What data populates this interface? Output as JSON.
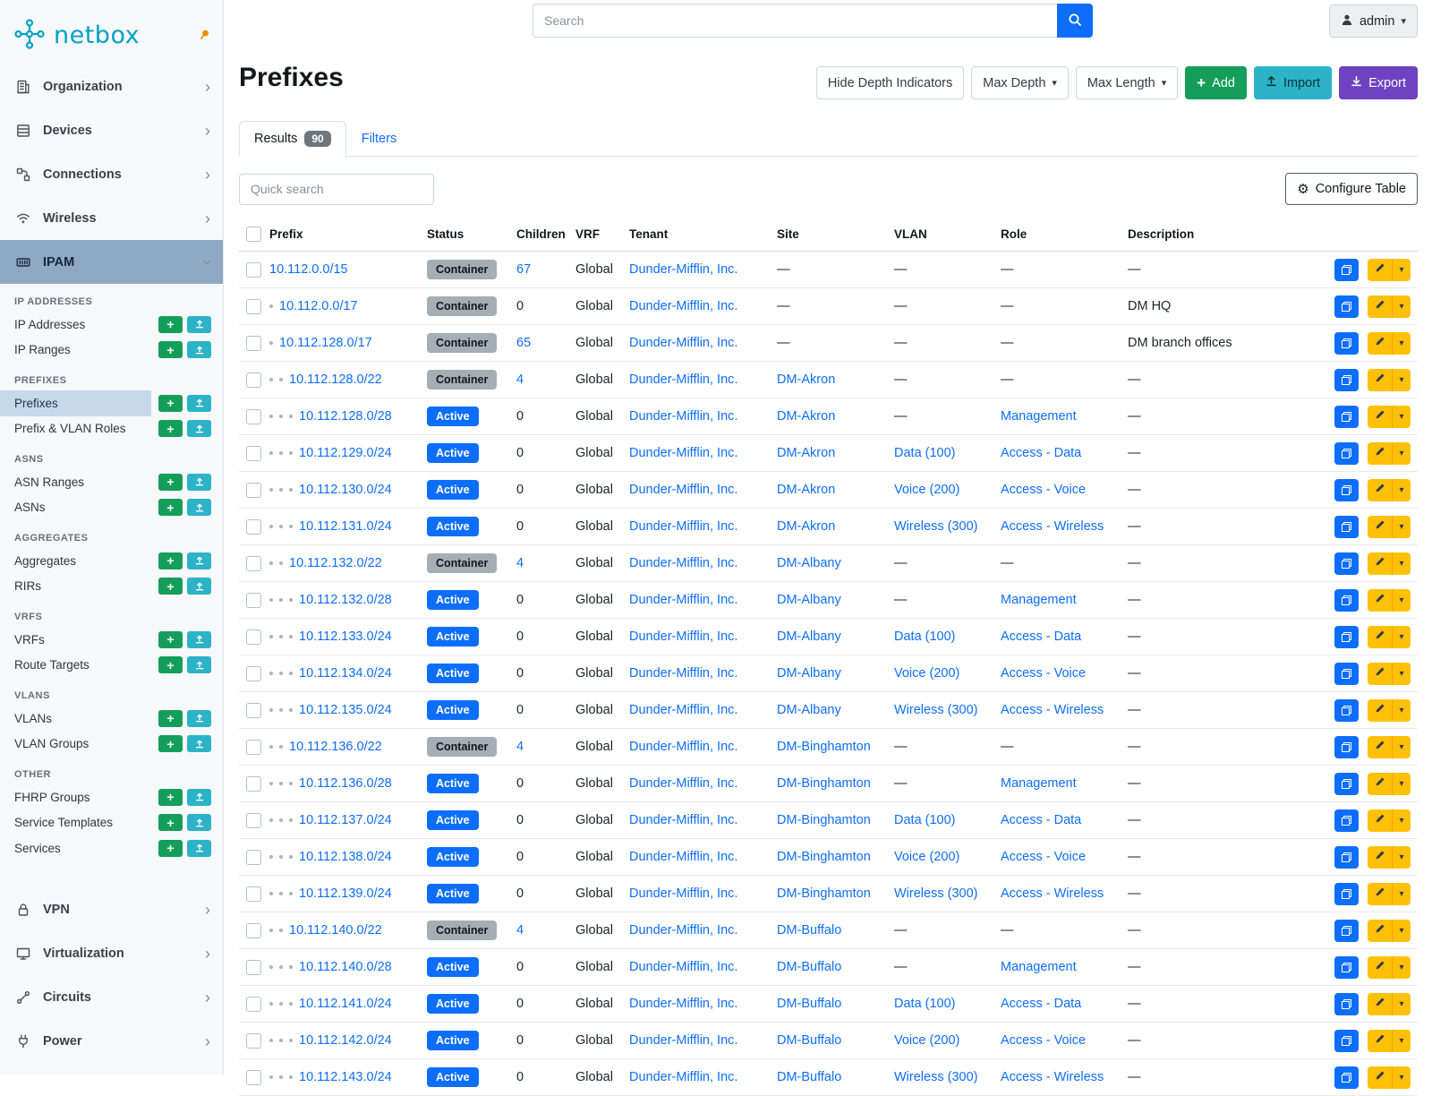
{
  "brand": {
    "name": "netbox"
  },
  "topbar": {
    "search_placeholder": "Search",
    "user": "admin"
  },
  "sidebar": {
    "top_items": [
      {
        "label": "Organization"
      },
      {
        "label": "Devices"
      },
      {
        "label": "Connections"
      },
      {
        "label": "Wireless"
      },
      {
        "label": "IPAM"
      }
    ],
    "ipam_groups": [
      {
        "heading": "IP ADDRESSES",
        "items": [
          {
            "label": "IP Addresses"
          },
          {
            "label": "IP Ranges"
          }
        ]
      },
      {
        "heading": "PREFIXES",
        "items": [
          {
            "label": "Prefixes",
            "active": true
          },
          {
            "label": "Prefix & VLAN Roles"
          }
        ]
      },
      {
        "heading": "ASNS",
        "items": [
          {
            "label": "ASN Ranges"
          },
          {
            "label": "ASNs"
          }
        ]
      },
      {
        "heading": "AGGREGATES",
        "items": [
          {
            "label": "Aggregates"
          },
          {
            "label": "RIRs"
          }
        ]
      },
      {
        "heading": "VRFS",
        "items": [
          {
            "label": "VRFs"
          },
          {
            "label": "Route Targets"
          }
        ]
      },
      {
        "heading": "VLANS",
        "items": [
          {
            "label": "VLANs"
          },
          {
            "label": "VLAN Groups"
          }
        ]
      },
      {
        "heading": "OTHER",
        "items": [
          {
            "label": "FHRP Groups"
          },
          {
            "label": "Service Templates"
          },
          {
            "label": "Services"
          }
        ]
      }
    ],
    "bottom_items": [
      {
        "label": "VPN"
      },
      {
        "label": "Virtualization"
      },
      {
        "label": "Circuits"
      },
      {
        "label": "Power"
      }
    ]
  },
  "page": {
    "title": "Prefixes",
    "actions": {
      "hide_depth": "Hide Depth Indicators",
      "max_depth": "Max Depth",
      "max_length": "Max Length",
      "add": "Add",
      "import": "Import",
      "export": "Export"
    },
    "tabs": {
      "results": "Results",
      "results_count": "90",
      "filters": "Filters"
    },
    "quick_search_placeholder": "Quick search",
    "configure_table": "Configure Table"
  },
  "table": {
    "columns": {
      "prefix": "Prefix",
      "status": "Status",
      "children": "Children",
      "vrf": "VRF",
      "tenant": "Tenant",
      "site": "Site",
      "vlan": "VLAN",
      "role": "Role",
      "description": "Description"
    },
    "rows": [
      {
        "depth": 0,
        "prefix": "10.112.0.0/15",
        "status": "Container",
        "children": "67",
        "vrf": "Global",
        "tenant": "Dunder-Mifflin, Inc.",
        "site": "—",
        "vlan": "—",
        "role": "—",
        "description": "—"
      },
      {
        "depth": 1,
        "prefix": "10.112.0.0/17",
        "status": "Container",
        "children": "0",
        "vrf": "Global",
        "tenant": "Dunder-Mifflin, Inc.",
        "site": "—",
        "vlan": "—",
        "role": "—",
        "description": "DM HQ"
      },
      {
        "depth": 1,
        "prefix": "10.112.128.0/17",
        "status": "Container",
        "children": "65",
        "vrf": "Global",
        "tenant": "Dunder-Mifflin, Inc.",
        "site": "—",
        "vlan": "—",
        "role": "—",
        "description": "DM branch offices"
      },
      {
        "depth": 2,
        "prefix": "10.112.128.0/22",
        "status": "Container",
        "children": "4",
        "vrf": "Global",
        "tenant": "Dunder-Mifflin, Inc.",
        "site": "DM-Akron",
        "vlan": "—",
        "role": "—",
        "description": "—"
      },
      {
        "depth": 3,
        "prefix": "10.112.128.0/28",
        "status": "Active",
        "children": "0",
        "vrf": "Global",
        "tenant": "Dunder-Mifflin, Inc.",
        "site": "DM-Akron",
        "vlan": "—",
        "role": "Management",
        "description": "—"
      },
      {
        "depth": 3,
        "prefix": "10.112.129.0/24",
        "status": "Active",
        "children": "0",
        "vrf": "Global",
        "tenant": "Dunder-Mifflin, Inc.",
        "site": "DM-Akron",
        "vlan": "Data (100)",
        "role": "Access - Data",
        "description": "—"
      },
      {
        "depth": 3,
        "prefix": "10.112.130.0/24",
        "status": "Active",
        "children": "0",
        "vrf": "Global",
        "tenant": "Dunder-Mifflin, Inc.",
        "site": "DM-Akron",
        "vlan": "Voice (200)",
        "role": "Access - Voice",
        "description": "—"
      },
      {
        "depth": 3,
        "prefix": "10.112.131.0/24",
        "status": "Active",
        "children": "0",
        "vrf": "Global",
        "tenant": "Dunder-Mifflin, Inc.",
        "site": "DM-Akron",
        "vlan": "Wireless (300)",
        "role": "Access - Wireless",
        "description": "—"
      },
      {
        "depth": 2,
        "prefix": "10.112.132.0/22",
        "status": "Container",
        "children": "4",
        "vrf": "Global",
        "tenant": "Dunder-Mifflin, Inc.",
        "site": "DM-Albany",
        "vlan": "—",
        "role": "—",
        "description": "—"
      },
      {
        "depth": 3,
        "prefix": "10.112.132.0/28",
        "status": "Active",
        "children": "0",
        "vrf": "Global",
        "tenant": "Dunder-Mifflin, Inc.",
        "site": "DM-Albany",
        "vlan": "—",
        "role": "Management",
        "description": "—"
      },
      {
        "depth": 3,
        "prefix": "10.112.133.0/24",
        "status": "Active",
        "children": "0",
        "vrf": "Global",
        "tenant": "Dunder-Mifflin, Inc.",
        "site": "DM-Albany",
        "vlan": "Data (100)",
        "role": "Access - Data",
        "description": "—"
      },
      {
        "depth": 3,
        "prefix": "10.112.134.0/24",
        "status": "Active",
        "children": "0",
        "vrf": "Global",
        "tenant": "Dunder-Mifflin, Inc.",
        "site": "DM-Albany",
        "vlan": "Voice (200)",
        "role": "Access - Voice",
        "description": "—"
      },
      {
        "depth": 3,
        "prefix": "10.112.135.0/24",
        "status": "Active",
        "children": "0",
        "vrf": "Global",
        "tenant": "Dunder-Mifflin, Inc.",
        "site": "DM-Albany",
        "vlan": "Wireless (300)",
        "role": "Access - Wireless",
        "description": "—"
      },
      {
        "depth": 2,
        "prefix": "10.112.136.0/22",
        "status": "Container",
        "children": "4",
        "vrf": "Global",
        "tenant": "Dunder-Mifflin, Inc.",
        "site": "DM-Binghamton",
        "vlan": "—",
        "role": "—",
        "description": "—"
      },
      {
        "depth": 3,
        "prefix": "10.112.136.0/28",
        "status": "Active",
        "children": "0",
        "vrf": "Global",
        "tenant": "Dunder-Mifflin, Inc.",
        "site": "DM-Binghamton",
        "vlan": "—",
        "role": "Management",
        "description": "—"
      },
      {
        "depth": 3,
        "prefix": "10.112.137.0/24",
        "status": "Active",
        "children": "0",
        "vrf": "Global",
        "tenant": "Dunder-Mifflin, Inc.",
        "site": "DM-Binghamton",
        "vlan": "Data (100)",
        "role": "Access - Data",
        "description": "—"
      },
      {
        "depth": 3,
        "prefix": "10.112.138.0/24",
        "status": "Active",
        "children": "0",
        "vrf": "Global",
        "tenant": "Dunder-Mifflin, Inc.",
        "site": "DM-Binghamton",
        "vlan": "Voice (200)",
        "role": "Access - Voice",
        "description": "—"
      },
      {
        "depth": 3,
        "prefix": "10.112.139.0/24",
        "status": "Active",
        "children": "0",
        "vrf": "Global",
        "tenant": "Dunder-Mifflin, Inc.",
        "site": "DM-Binghamton",
        "vlan": "Wireless (300)",
        "role": "Access - Wireless",
        "description": "—"
      },
      {
        "depth": 2,
        "prefix": "10.112.140.0/22",
        "status": "Container",
        "children": "4",
        "vrf": "Global",
        "tenant": "Dunder-Mifflin, Inc.",
        "site": "DM-Buffalo",
        "vlan": "—",
        "role": "—",
        "description": "—"
      },
      {
        "depth": 3,
        "prefix": "10.112.140.0/28",
        "status": "Active",
        "children": "0",
        "vrf": "Global",
        "tenant": "Dunder-Mifflin, Inc.",
        "site": "DM-Buffalo",
        "vlan": "—",
        "role": "Management",
        "description": "—"
      },
      {
        "depth": 3,
        "prefix": "10.112.141.0/24",
        "status": "Active",
        "children": "0",
        "vrf": "Global",
        "tenant": "Dunder-Mifflin, Inc.",
        "site": "DM-Buffalo",
        "vlan": "Data (100)",
        "role": "Access - Data",
        "description": "—"
      },
      {
        "depth": 3,
        "prefix": "10.112.142.0/24",
        "status": "Active",
        "children": "0",
        "vrf": "Global",
        "tenant": "Dunder-Mifflin, Inc.",
        "site": "DM-Buffalo",
        "vlan": "Voice (200)",
        "role": "Access - Voice",
        "description": "—"
      },
      {
        "depth": 3,
        "prefix": "10.112.143.0/24",
        "status": "Active",
        "children": "0",
        "vrf": "Global",
        "tenant": "Dunder-Mifflin, Inc.",
        "site": "DM-Buffalo",
        "vlan": "Wireless (300)",
        "role": "Access - Wireless",
        "description": "—"
      }
    ]
  },
  "colors": {
    "link_blue": "#0d6efd",
    "active_badge": "#0d6efd",
    "container_badge": "#a5adb5",
    "add_green": "#149e5a",
    "import_cyan": "#2cb3c7",
    "export_purple": "#6e42c1",
    "edit_yellow": "#ffc107",
    "brand_teal": "#00a2c6",
    "pin_orange": "#f08c00",
    "ipam_highlight": "#8fa9c2",
    "active_item_highlight": "#c6d9ea"
  }
}
